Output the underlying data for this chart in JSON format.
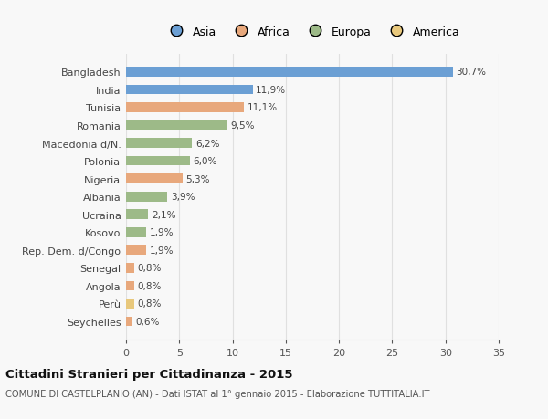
{
  "categories": [
    "Seychelles",
    "Perù",
    "Angola",
    "Senegal",
    "Rep. Dem. d/Congo",
    "Kosovo",
    "Ucraina",
    "Albania",
    "Nigeria",
    "Polonia",
    "Macedonia d/N.",
    "Romania",
    "Tunisia",
    "India",
    "Bangladesh"
  ],
  "values": [
    0.6,
    0.8,
    0.8,
    0.8,
    1.9,
    1.9,
    2.1,
    3.9,
    5.3,
    6.0,
    6.2,
    9.5,
    11.1,
    11.9,
    30.7
  ],
  "labels": [
    "0,6%",
    "0,8%",
    "0,8%",
    "0,8%",
    "1,9%",
    "1,9%",
    "2,1%",
    "3,9%",
    "5,3%",
    "6,0%",
    "6,2%",
    "9,5%",
    "11,1%",
    "11,9%",
    "30,7%"
  ],
  "colors": [
    "#e8a87c",
    "#e8c87c",
    "#e8a87c",
    "#e8a87c",
    "#e8a87c",
    "#9dba88",
    "#9dba88",
    "#9dba88",
    "#e8a87c",
    "#9dba88",
    "#9dba88",
    "#9dba88",
    "#e8a87c",
    "#6b9fd4",
    "#6b9fd4"
  ],
  "legend_labels": [
    "Asia",
    "Africa",
    "Europa",
    "America"
  ],
  "legend_colors": [
    "#6b9fd4",
    "#e8a87c",
    "#9dba88",
    "#e8c87c"
  ],
  "title": "Cittadini Stranieri per Cittadinanza - 2015",
  "subtitle": "COMUNE DI CASTELPLANIO (AN) - Dati ISTAT al 1° gennaio 2015 - Elaborazione TUTTITALIA.IT",
  "xlim": [
    0,
    35
  ],
  "xticks": [
    0,
    5,
    10,
    15,
    20,
    25,
    30,
    35
  ],
  "background_color": "#f8f8f8",
  "grid_color": "#e0e0e0"
}
